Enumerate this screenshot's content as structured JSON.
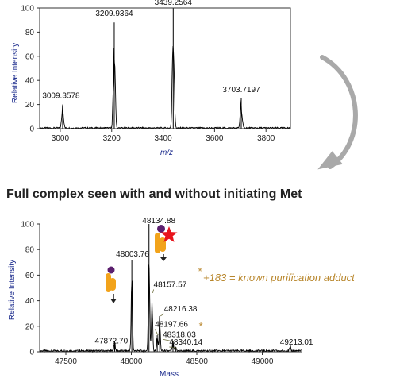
{
  "headline": "Full complex seen with and without initiating Met",
  "annotation": {
    "star_symbol": "*",
    "adduct_text": "+183 = known purification adduct",
    "color": "#b8862b"
  },
  "colors": {
    "trace": "#000000",
    "axis_label": "#1a2a8c",
    "subunit_orange": "#f2a31b",
    "subunit_purple": "#5b1f6e",
    "modification_star": "#e8141c",
    "arrow_gray": "#a9a9a9"
  },
  "icons": [
    "curved-arrow-icon",
    "complex-subunit-icon",
    "red-star-icon",
    "down-arrow-icon"
  ],
  "chart_data": [
    {
      "type": "line",
      "title": "",
      "xlabel": "m/z",
      "ylabel": "Relative Intensity",
      "xlim": [
        2920,
        3895
      ],
      "ylim": [
        0,
        100
      ],
      "xticks": [
        3000,
        3200,
        3400,
        3600,
        3800
      ],
      "yticks": [
        0,
        20,
        40,
        60,
        80,
        100
      ],
      "peaks": [
        {
          "x": 3009.3578,
          "y": 20,
          "label": "3009.3578"
        },
        {
          "x": 3209.9364,
          "y": 88,
          "label": "3209.9364"
        },
        {
          "x": 3439.2564,
          "y": 100,
          "label": "3439.2564"
        },
        {
          "x": 3703.7197,
          "y": 25,
          "label": "3703.7197"
        }
      ]
    },
    {
      "type": "line",
      "title": "",
      "xlabel": "Mass",
      "ylabel": "Relative Intensity",
      "xlim": [
        47300,
        49300
      ],
      "ylim": [
        0,
        100
      ],
      "xticks": [
        47500,
        48000,
        48500,
        49000
      ],
      "yticks": [
        0,
        20,
        40,
        60,
        80,
        100
      ],
      "peaks": [
        {
          "x": 47872.7,
          "y": 8,
          "label": "47872.70"
        },
        {
          "x": 48003.76,
          "y": 72,
          "label": "48003.76"
        },
        {
          "x": 48134.88,
          "y": 100,
          "label": "48134.88"
        },
        {
          "x": 48157.57,
          "y": 46,
          "label": "48157.57"
        },
        {
          "x": 48197.66,
          "y": 13,
          "label": "48197.66"
        },
        {
          "x": 48216.38,
          "y": 28,
          "label": "48216.38"
        },
        {
          "x": 48318.03,
          "y": 8,
          "label": "48318.03"
        },
        {
          "x": 48340.14,
          "y": 3,
          "label": "48340.14"
        },
        {
          "x": 49213.01,
          "y": 4,
          "label": "49213.01"
        }
      ]
    }
  ]
}
